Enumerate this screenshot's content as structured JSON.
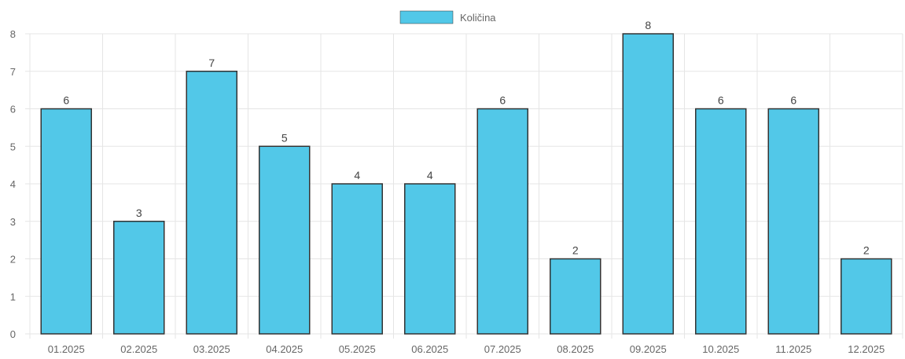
{
  "chart_data": {
    "type": "bar",
    "title": "",
    "xlabel": "",
    "ylabel": "",
    "categories": [
      "01.2025",
      "02.2025",
      "03.2025",
      "04.2025",
      "05.2025",
      "06.2025",
      "07.2025",
      "08.2025",
      "09.2025",
      "10.2025",
      "11.2025",
      "12.2025"
    ],
    "series": [
      {
        "name": "Količina",
        "values": [
          6,
          3,
          7,
          5,
          4,
          4,
          6,
          2,
          8,
          6,
          6,
          2
        ]
      }
    ],
    "ylim": [
      0,
      8
    ],
    "yticks": [
      0,
      1,
      2,
      3,
      4,
      5,
      6,
      7,
      8
    ],
    "grid": true,
    "legend_position": "top",
    "data_labels": true,
    "colors": {
      "bar_fill": "#52c8e8",
      "bar_border": "#333333",
      "grid": "#e5e5e5",
      "tick_text": "#666666",
      "data_label_text": "#444444"
    }
  }
}
